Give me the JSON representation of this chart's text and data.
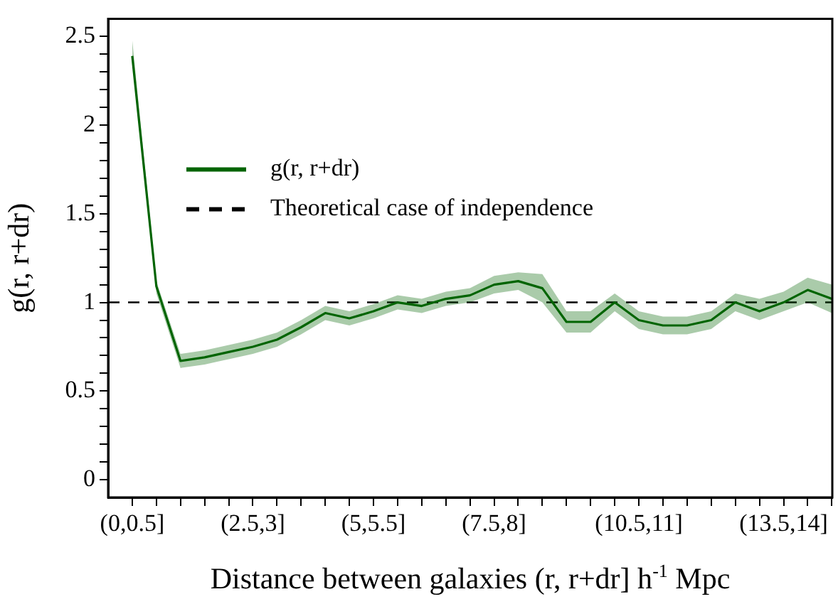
{
  "chart_data": {
    "type": "line",
    "xlabel": "Distance between galaxies (r, r+dr] h$^{-1}$ Mpc",
    "ylabel": "g(r, r+dr)",
    "categories": [
      "(0,0.5]",
      null,
      null,
      null,
      null,
      "(2.5,3]",
      null,
      null,
      null,
      null,
      "(5,5.5]",
      null,
      null,
      null,
      null,
      "(7.5,8]",
      null,
      null,
      null,
      null,
      null,
      "(10.5,11]",
      null,
      null,
      null,
      null,
      null,
      "(13.5,14]",
      null,
      null
    ],
    "series": [
      {
        "name": "g(r, r+dr)",
        "color": "#006400",
        "values": [
          2.39,
          1.09,
          0.67,
          0.69,
          0.72,
          0.75,
          0.79,
          0.86,
          0.94,
          0.91,
          0.95,
          1.0,
          0.98,
          1.02,
          1.04,
          1.1,
          1.12,
          1.08,
          0.89,
          0.89,
          1.0,
          0.9,
          0.87,
          0.87,
          0.9,
          1.0,
          0.95,
          1.0,
          1.07,
          1.02
        ],
        "lower": [
          2.37,
          1.05,
          0.63,
          0.65,
          0.68,
          0.71,
          0.75,
          0.82,
          0.9,
          0.87,
          0.91,
          0.96,
          0.94,
          0.98,
          1.0,
          1.05,
          1.07,
          1.0,
          0.83,
          0.83,
          0.95,
          0.85,
          0.82,
          0.82,
          0.85,
          0.95,
          0.9,
          0.95,
          1.0,
          0.94
        ],
        "upper": [
          2.48,
          1.12,
          0.71,
          0.73,
          0.76,
          0.79,
          0.83,
          0.9,
          0.98,
          0.95,
          0.99,
          1.04,
          1.02,
          1.06,
          1.08,
          1.15,
          1.17,
          1.16,
          0.95,
          0.95,
          1.05,
          0.95,
          0.92,
          0.92,
          0.95,
          1.05,
          1.02,
          1.06,
          1.14,
          1.1
        ]
      }
    ],
    "ylim": [
      -0.1,
      2.6
    ],
    "yticks": [
      0,
      {
        "value": 0.1,
        "label": null
      },
      {
        "value": 0.2,
        "label": null
      },
      {
        "value": 0.3,
        "label": null
      },
      {
        "value": 0.4,
        "label": null
      },
      0.5,
      {
        "value": 0.6,
        "label": null
      },
      {
        "value": 0.7,
        "label": null
      },
      {
        "value": 0.8,
        "label": null
      },
      {
        "value": 0.9,
        "label": null
      },
      1,
      {
        "value": 1.1,
        "label": null
      },
      {
        "value": 1.2,
        "label": null
      },
      {
        "value": 1.3,
        "label": null
      },
      {
        "value": 1.4,
        "label": null
      },
      1.5,
      {
        "value": 1.6,
        "label": null
      },
      {
        "value": 1.7,
        "label": null
      },
      {
        "value": 1.8,
        "label": null
      },
      {
        "value": 1.9,
        "label": null
      },
      2,
      {
        "value": 2.1,
        "label": null
      },
      {
        "value": 2.2,
        "label": null
      },
      {
        "value": 2.3,
        "label": null
      },
      {
        "value": 2.4,
        "label": null
      },
      2.5
    ],
    "ref_lines": [
      {
        "axis": "y",
        "value": 1,
        "label": "Theoretical case of independence",
        "color": "#000000",
        "line_style": "dashed"
      }
    ],
    "legend": "top left",
    "grid": false,
    "marker": "none",
    "line_style": "solid"
  }
}
